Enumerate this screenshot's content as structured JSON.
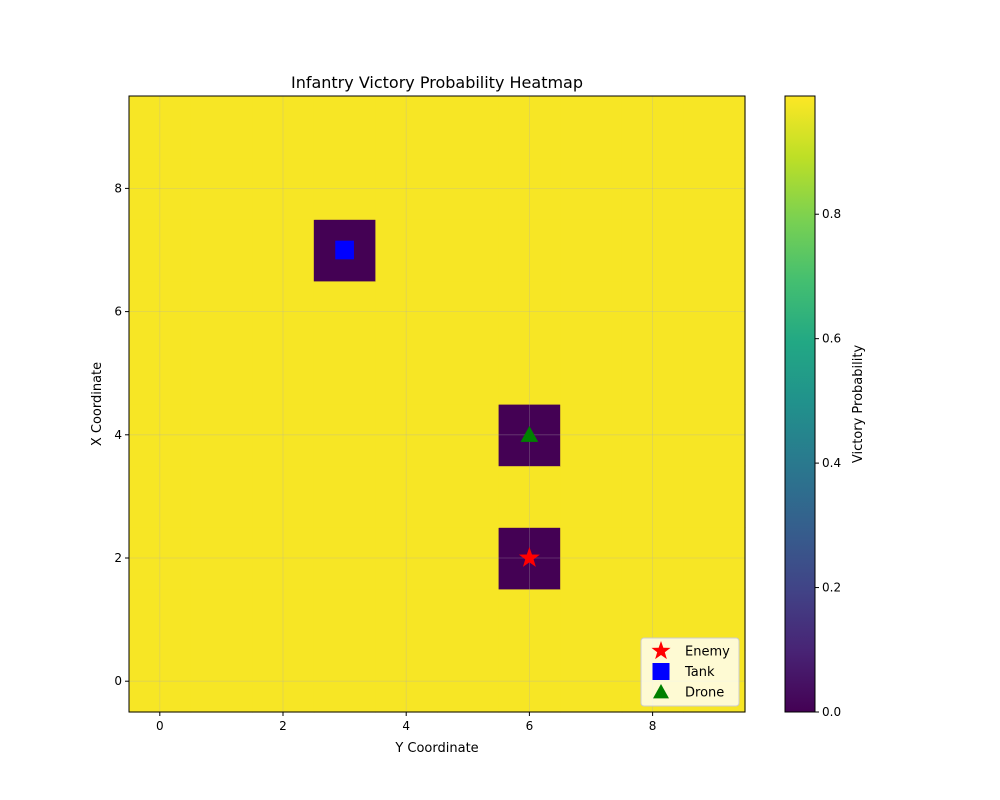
{
  "chart_data": {
    "type": "heatmap",
    "title": "Infantry Victory Probability Heatmap",
    "xlabel": "Y Coordinate",
    "ylabel": "X Coordinate",
    "xlim": [
      -0.5,
      9.5
    ],
    "ylim": [
      -0.5,
      9.5
    ],
    "xticks": [
      0,
      2,
      4,
      6,
      8
    ],
    "yticks": [
      0,
      2,
      4,
      6,
      8
    ],
    "grid": true,
    "colormap": "viridis",
    "grid_values": [
      [
        0.98,
        0.98,
        0.98,
        0.98,
        0.98,
        0.98,
        0.98,
        0.98,
        0.98,
        0.98
      ],
      [
        0.98,
        0.98,
        0.98,
        0.98,
        0.98,
        0.98,
        0.98,
        0.98,
        0.98,
        0.98
      ],
      [
        0.98,
        0.98,
        0.98,
        0.98,
        0.98,
        0.98,
        0.0,
        0.98,
        0.98,
        0.98
      ],
      [
        0.98,
        0.98,
        0.98,
        0.98,
        0.98,
        0.98,
        0.98,
        0.98,
        0.98,
        0.98
      ],
      [
        0.98,
        0.98,
        0.98,
        0.98,
        0.98,
        0.98,
        0.0,
        0.98,
        0.98,
        0.98
      ],
      [
        0.98,
        0.98,
        0.98,
        0.98,
        0.98,
        0.98,
        0.98,
        0.98,
        0.98,
        0.98
      ],
      [
        0.98,
        0.98,
        0.98,
        0.98,
        0.98,
        0.98,
        0.98,
        0.98,
        0.98,
        0.98
      ],
      [
        0.98,
        0.98,
        0.98,
        0.0,
        0.98,
        0.98,
        0.98,
        0.98,
        0.98,
        0.98
      ],
      [
        0.98,
        0.98,
        0.98,
        0.98,
        0.98,
        0.98,
        0.98,
        0.98,
        0.98,
        0.98
      ],
      [
        0.98,
        0.98,
        0.98,
        0.98,
        0.98,
        0.98,
        0.98,
        0.98,
        0.98,
        0.98
      ]
    ],
    "markers": [
      {
        "name": "Enemy",
        "shape": "star",
        "color": "#ff0000",
        "x": 6,
        "y": 2
      },
      {
        "name": "Tank",
        "shape": "square",
        "color": "#0000ff",
        "x": 3,
        "y": 7
      },
      {
        "name": "Drone",
        "shape": "triangle",
        "color": "#008000",
        "x": 6,
        "y": 4
      }
    ],
    "legend_position": "lower-right",
    "colorbar": {
      "label": "Victory Probability",
      "range": [
        0.0,
        0.99
      ],
      "ticks": [
        0.0,
        0.2,
        0.4,
        0.6,
        0.8
      ],
      "tick_labels": [
        "0.0",
        "0.2",
        "0.4",
        "0.6",
        "0.8"
      ]
    }
  }
}
